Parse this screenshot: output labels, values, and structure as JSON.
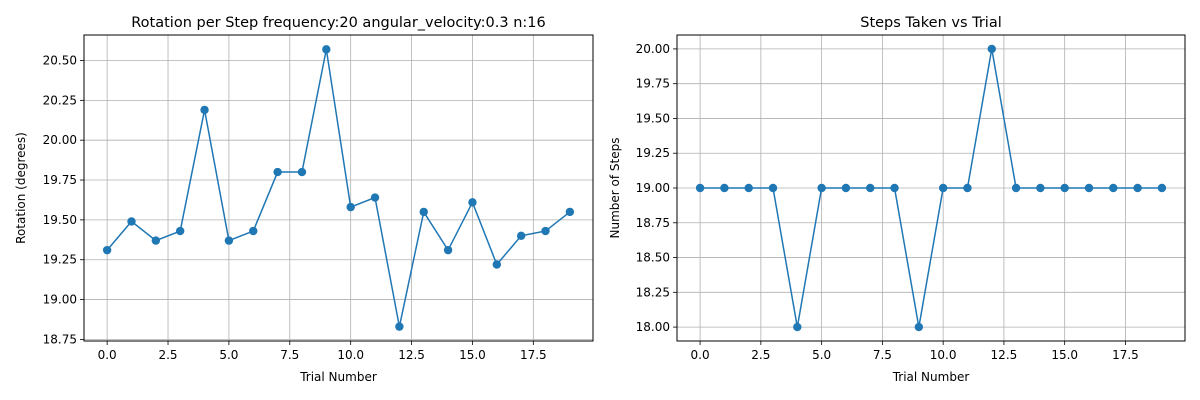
{
  "chart_data": [
    {
      "type": "line",
      "title": "Rotation per Step frequency:20 angular_velocity:0.3 n:16",
      "xlabel": "Trial Number",
      "ylabel": "Rotation (degrees)",
      "x": [
        0,
        1,
        2,
        3,
        4,
        5,
        6,
        7,
        8,
        9,
        10,
        11,
        12,
        13,
        14,
        15,
        16,
        17,
        18,
        19
      ],
      "series": [
        {
          "values": [
            19.31,
            19.49,
            19.37,
            19.43,
            20.19,
            19.37,
            19.43,
            19.8,
            19.8,
            20.57,
            19.58,
            19.64,
            18.83,
            19.55,
            19.31,
            19.61,
            19.22,
            19.4,
            19.43,
            19.55
          ],
          "color": "#1f77b4",
          "marker": "circle"
        }
      ],
      "xlim": [
        -0.95,
        19.95
      ],
      "ylim": [
        18.74,
        20.66
      ],
      "xticks": [
        "0.0",
        "2.5",
        "5.0",
        "7.5",
        "10.0",
        "12.5",
        "15.0",
        "17.5"
      ],
      "yticks": [
        "18.75",
        "19.00",
        "19.25",
        "19.50",
        "19.75",
        "20.00",
        "20.25",
        "20.50"
      ],
      "grid": true
    },
    {
      "type": "line",
      "title": "Steps Taken vs Trial",
      "xlabel": "Trial Number",
      "ylabel": "Number of Steps",
      "x": [
        0,
        1,
        2,
        3,
        4,
        5,
        6,
        7,
        8,
        9,
        10,
        11,
        12,
        13,
        14,
        15,
        16,
        17,
        18,
        19
      ],
      "series": [
        {
          "values": [
            19,
            19,
            19,
            19,
            18,
            19,
            19,
            19,
            19,
            18,
            19,
            19,
            20,
            19,
            19,
            19,
            19,
            19,
            19,
            19
          ],
          "color": "#1f77b4",
          "marker": "circle"
        }
      ],
      "xlim": [
        -0.95,
        19.95
      ],
      "ylim": [
        17.9,
        20.1
      ],
      "xticks": [
        "0.0",
        "2.5",
        "5.0",
        "7.5",
        "10.0",
        "12.5",
        "15.0",
        "17.5"
      ],
      "yticks": [
        "18.00",
        "18.25",
        "18.50",
        "18.75",
        "19.00",
        "19.25",
        "19.50",
        "19.75",
        "20.00"
      ],
      "grid": true
    }
  ]
}
